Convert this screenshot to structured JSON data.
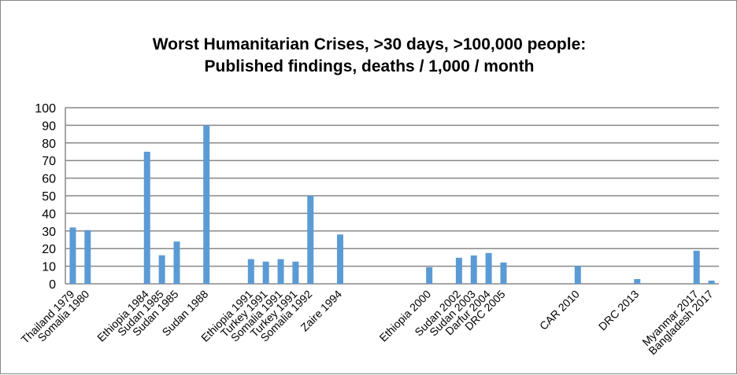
{
  "chart_data": {
    "type": "bar",
    "title_line1": "Worst Humanitarian Crises, >30 days,  >100,000 people:",
    "title_line2": "Published findings, deaths / 1,000 / month",
    "xlabel": "",
    "ylabel": "",
    "ylim": [
      0,
      100
    ],
    "yticks": [
      "0",
      "10",
      "20",
      "30",
      "40",
      "50",
      "60",
      "70",
      "80",
      "90",
      "100"
    ],
    "grid": true,
    "legend": "none",
    "bar_color": "#5B9BD5",
    "slot_count": 44,
    "bars": [
      {
        "label": "Thailand 1979",
        "slot": 0,
        "value": 32
      },
      {
        "label": "Somalia 1980",
        "slot": 1,
        "value": 30.5
      },
      {
        "label": "Ethiopia 1984",
        "slot": 5,
        "value": 75
      },
      {
        "label": "Sudan 1985",
        "slot": 6,
        "value": 16.2
      },
      {
        "label": "Sudan 1985",
        "slot": 7,
        "value": 24
      },
      {
        "label": "Sudan 1988",
        "slot": 9,
        "value": 90
      },
      {
        "label": "Ethiopia 1991",
        "slot": 12,
        "value": 14
      },
      {
        "label": "Turkey 1991",
        "slot": 13,
        "value": 12.6
      },
      {
        "label": "Somalia 1991",
        "slot": 14,
        "value": 14
      },
      {
        "label": "Turkey 1991",
        "slot": 15,
        "value": 12.6
      },
      {
        "label": "Somalia 1992",
        "slot": 16,
        "value": 50
      },
      {
        "label": "Zaire 1994",
        "slot": 18,
        "value": 28
      },
      {
        "label": "Ethiopia 2000",
        "slot": 24,
        "value": 9.4
      },
      {
        "label": "Sudan 2002",
        "slot": 26,
        "value": 14.8
      },
      {
        "label": "Sudan 2003",
        "slot": 27,
        "value": 16.1
      },
      {
        "label": "Darfur 2004",
        "slot": 28,
        "value": 17.5
      },
      {
        "label": "DRC 2005",
        "slot": 29,
        "value": 12.1
      },
      {
        "label": "CAR 2010",
        "slot": 34,
        "value": 10.1
      },
      {
        "label": "DRC 2013",
        "slot": 38,
        "value": 2.7
      },
      {
        "label": "Myanmar 2017",
        "slot": 42,
        "value": 18.8
      },
      {
        "label": "Bangladesh 2017",
        "slot": 43,
        "value": 1.8
      }
    ]
  }
}
